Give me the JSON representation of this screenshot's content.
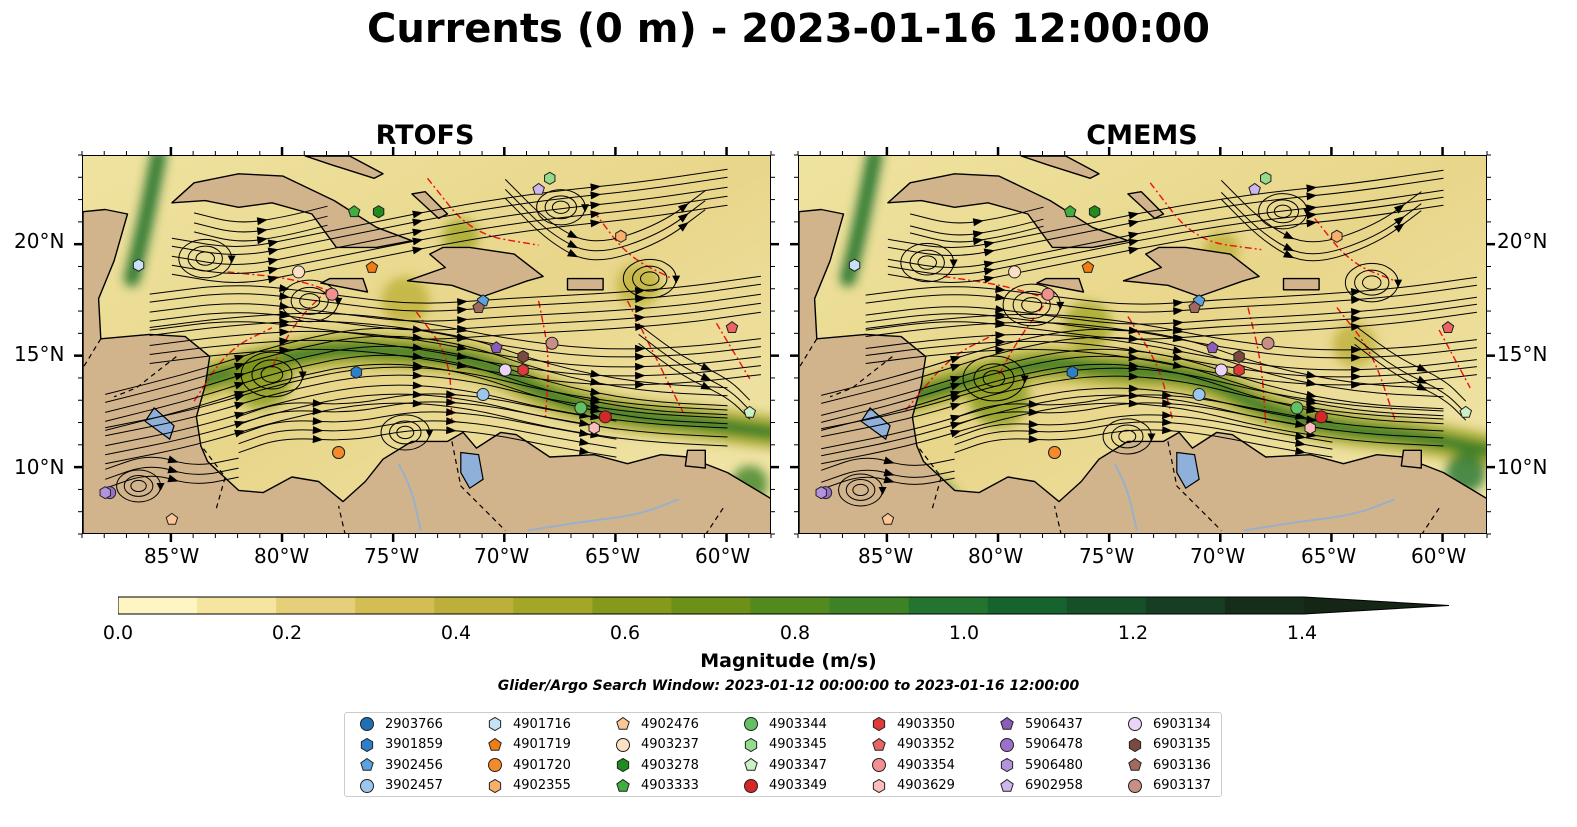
{
  "title": "Currents (0 m) - 2023-01-16 12:00:00",
  "panels": [
    {
      "title": "RTOFS"
    },
    {
      "title": "CMEMS"
    }
  ],
  "lon_ticks": [
    "85°W",
    "80°W",
    "75°W",
    "70°W",
    "65°W",
    "60°W"
  ],
  "lat_ticks": [
    "20°N",
    "15°N",
    "10°N"
  ],
  "colorbar": {
    "label": "Magnitude (m/s)",
    "ticks": [
      "0.0",
      "0.2",
      "0.4",
      "0.6",
      "0.8",
      "1.0",
      "1.2",
      "1.4"
    ],
    "range": [
      0,
      1.5
    ],
    "colors": [
      "#fdf6c3",
      "#f4e59f",
      "#e5cf78",
      "#d5bd55",
      "#bdb03a",
      "#a3a627",
      "#87991a",
      "#6c9018",
      "#528a1e",
      "#3e8226",
      "#23742e",
      "#17632e",
      "#165028",
      "#173e22",
      "#162d1b"
    ]
  },
  "search_window": "Glider/Argo Search Window: 2023-01-12 00:00:00 to 2023-01-16 12:00:00",
  "legend": [
    {
      "id": "2903766",
      "marker": "circle",
      "color": "#1f6fb4"
    },
    {
      "id": "3901859",
      "marker": "hexagon",
      "color": "#2c7fc8"
    },
    {
      "id": "3902456",
      "marker": "pentagon",
      "color": "#5aa3e0"
    },
    {
      "id": "3902457",
      "marker": "circle",
      "color": "#9bc7ec"
    },
    {
      "id": "4901716",
      "marker": "hexagon",
      "color": "#c5e3f7"
    },
    {
      "id": "4901719",
      "marker": "pentagon",
      "color": "#f07d13"
    },
    {
      "id": "4901720",
      "marker": "circle",
      "color": "#f58a2b"
    },
    {
      "id": "4902355",
      "marker": "hexagon",
      "color": "#f9b06b"
    },
    {
      "id": "4902476",
      "marker": "pentagon",
      "color": "#fcc795"
    },
    {
      "id": "4903237",
      "marker": "circle",
      "color": "#fde0c3"
    },
    {
      "id": "4903278",
      "marker": "hexagon",
      "color": "#218a21"
    },
    {
      "id": "4903333",
      "marker": "pentagon",
      "color": "#3fae3f"
    },
    {
      "id": "4903344",
      "marker": "circle",
      "color": "#63c163"
    },
    {
      "id": "4903345",
      "marker": "hexagon",
      "color": "#95db8c"
    },
    {
      "id": "4903347",
      "marker": "pentagon",
      "color": "#c9f1c3"
    },
    {
      "id": "4903349",
      "marker": "circle",
      "color": "#d62728"
    },
    {
      "id": "4903350",
      "marker": "hexagon",
      "color": "#e0393a"
    },
    {
      "id": "4903352",
      "marker": "pentagon",
      "color": "#ea6466"
    },
    {
      "id": "4903354",
      "marker": "circle",
      "color": "#f29091"
    },
    {
      "id": "4903629",
      "marker": "hexagon",
      "color": "#fcbcbc"
    },
    {
      "id": "5906437",
      "marker": "pentagon",
      "color": "#8b5cb8"
    },
    {
      "id": "5906478",
      "marker": "circle",
      "color": "#9c6fcb"
    },
    {
      "id": "5906480",
      "marker": "hexagon",
      "color": "#b394dc"
    },
    {
      "id": "6902958",
      "marker": "pentagon",
      "color": "#ccb8ee"
    },
    {
      "id": "6903134",
      "marker": "circle",
      "color": "#ead4f8"
    },
    {
      "id": "6903135",
      "marker": "hexagon",
      "color": "#7a4a3e"
    },
    {
      "id": "6903136",
      "marker": "pentagon",
      "color": "#a16a5c"
    },
    {
      "id": "6903137",
      "marker": "circle",
      "color": "#c98e85"
    }
  ],
  "floats": [
    {
      "id": "2903766",
      "lon": -77.5,
      "lat": 10.7
    },
    {
      "id": "3901859",
      "lon": -76.7,
      "lat": 14.3
    },
    {
      "id": "3902456",
      "lon": -71.0,
      "lat": 17.5
    },
    {
      "id": "3902457",
      "lon": -71.0,
      "lat": 13.3
    },
    {
      "id": "4901716",
      "lon": -86.5,
      "lat": 19.1
    },
    {
      "id": "4901719",
      "lon": -76.0,
      "lat": 19.0
    },
    {
      "id": "4901720",
      "lon": -77.5,
      "lat": 10.7
    },
    {
      "id": "4902355",
      "lon": -64.8,
      "lat": 20.4
    },
    {
      "id": "4902476",
      "lon": -85.0,
      "lat": 7.7
    },
    {
      "id": "4903237",
      "lon": -79.3,
      "lat": 18.8
    },
    {
      "id": "4903278",
      "lon": -75.7,
      "lat": 21.5
    },
    {
      "id": "4903333",
      "lon": -76.8,
      "lat": 21.5
    },
    {
      "id": "4903344",
      "lon": -66.6,
      "lat": 12.7
    },
    {
      "id": "4903345",
      "lon": -68.0,
      "lat": 23.0
    },
    {
      "id": "4903347",
      "lon": -59.0,
      "lat": 12.5
    },
    {
      "id": "4903349",
      "lon": -65.5,
      "lat": 12.3
    },
    {
      "id": "4903350",
      "lon": -69.2,
      "lat": 14.4
    },
    {
      "id": "4903352",
      "lon": -59.8,
      "lat": 16.3
    },
    {
      "id": "4903354",
      "lon": -77.8,
      "lat": 17.8
    },
    {
      "id": "4903629",
      "lon": -66.0,
      "lat": 11.8
    },
    {
      "id": "5906437",
      "lon": -70.4,
      "lat": 15.4
    },
    {
      "id": "5906478",
      "lon": -87.8,
      "lat": 8.9
    },
    {
      "id": "5906480",
      "lon": -88.0,
      "lat": 8.9
    },
    {
      "id": "6902958",
      "lon": -68.5,
      "lat": 22.5
    },
    {
      "id": "6903134",
      "lon": -70.0,
      "lat": 14.4
    },
    {
      "id": "6903135",
      "lon": -69.2,
      "lat": 15.0
    },
    {
      "id": "6903136",
      "lon": -71.2,
      "lat": 17.2
    },
    {
      "id": "6903137",
      "lon": -67.9,
      "lat": 15.6
    }
  ]
}
